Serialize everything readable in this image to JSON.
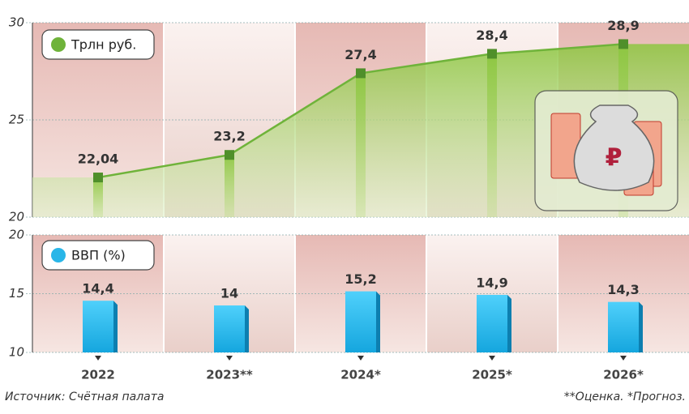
{
  "chart_data": [
    {
      "type": "line",
      "series": [
        {
          "name": "Трлн руб.",
          "color": "#6fb33a",
          "values": [
            22.04,
            23.2,
            27.4,
            28.4,
            28.9
          ],
          "value_labels": [
            "22,04",
            "23,2",
            "27,4",
            "28,4",
            "28,9"
          ]
        }
      ],
      "ylim": [
        20,
        30
      ],
      "yticks": [
        20,
        25,
        30
      ],
      "grid": true
    },
    {
      "type": "bar",
      "categories": [
        "2022",
        "2023**",
        "2024*",
        "2025*",
        "2026*"
      ],
      "series": [
        {
          "name": "ВВП (%)",
          "color": "#29b6e8",
          "values": [
            14.4,
            14,
            15.2,
            14.9,
            14.3
          ],
          "value_labels": [
            "14,4",
            "14",
            "15,2",
            "14,9",
            "14,3"
          ]
        }
      ],
      "ylim": [
        10,
        20
      ],
      "yticks": [
        10,
        15,
        20
      ],
      "grid": true
    }
  ],
  "source": "Источник: Счётная палата",
  "note": "**Оценка. *Прогноз."
}
